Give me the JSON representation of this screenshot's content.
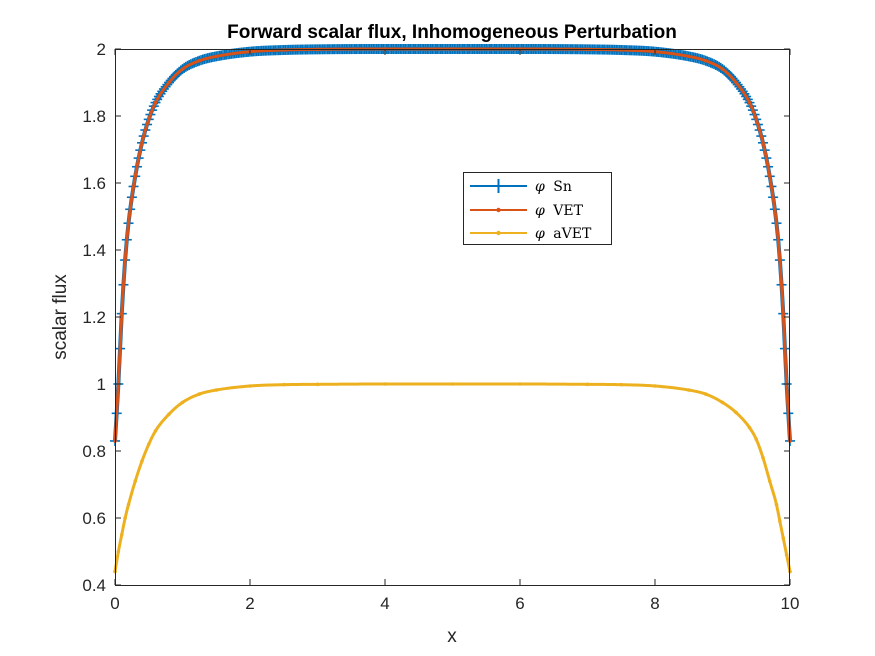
{
  "chart_data": {
    "type": "line",
    "title": "Forward scalar flux, Inhomogeneous Perturbation",
    "xlabel": "x",
    "ylabel": "scalar flux",
    "xlim": [
      0,
      10
    ],
    "ylim": [
      0.4,
      2
    ],
    "x_ticks": [
      "0",
      "2",
      "4",
      "6",
      "8",
      "10"
    ],
    "y_ticks": [
      "0.4",
      "0.6",
      "0.8",
      "1",
      "1.2",
      "1.4",
      "1.6",
      "1.8",
      "2"
    ],
    "grid": false,
    "legend_position": "center-right",
    "x": [
      0,
      0.05,
      0.1,
      0.15,
      0.2,
      0.3,
      0.4,
      0.5,
      0.6,
      0.8,
      1.0,
      1.25,
      1.5,
      2.0,
      2.5,
      3.0,
      4.0,
      5.0,
      6.0,
      7.0,
      7.5,
      8.0,
      8.5,
      8.75,
      9.0,
      9.2,
      9.4,
      9.5,
      9.6,
      9.7,
      9.8,
      9.85,
      9.9,
      9.95,
      10
    ],
    "series": [
      {
        "name": "φ Sn",
        "legend_symbol": "φ",
        "legend_label": "Sn",
        "color": "#0072BD",
        "marker": "plus",
        "values": [
          0.83,
          1.0,
          1.21,
          1.37,
          1.48,
          1.62,
          1.72,
          1.79,
          1.84,
          1.9,
          1.94,
          1.965,
          1.978,
          1.992,
          1.997,
          1.999,
          2.0,
          2.0,
          2.0,
          1.999,
          1.997,
          1.992,
          1.978,
          1.965,
          1.94,
          1.9,
          1.84,
          1.79,
          1.72,
          1.62,
          1.48,
          1.37,
          1.21,
          1.0,
          0.83
        ]
      },
      {
        "name": "φ VET",
        "legend_symbol": "φ",
        "legend_label": "VET",
        "color": "#D95319",
        "marker": "dot",
        "values": [
          0.83,
          1.0,
          1.21,
          1.37,
          1.48,
          1.62,
          1.72,
          1.79,
          1.84,
          1.9,
          1.94,
          1.965,
          1.978,
          1.992,
          1.997,
          1.999,
          2.0,
          2.0,
          2.0,
          1.999,
          1.997,
          1.992,
          1.978,
          1.965,
          1.94,
          1.9,
          1.84,
          1.79,
          1.72,
          1.62,
          1.48,
          1.37,
          1.21,
          1.0,
          0.83
        ]
      },
      {
        "name": "φ aVET",
        "legend_symbol": "φ",
        "legend_label": "aVET",
        "color": "#EDB120",
        "marker": "dot",
        "values": [
          0.44,
          0.5,
          0.55,
          0.6,
          0.64,
          0.71,
          0.77,
          0.82,
          0.86,
          0.91,
          0.945,
          0.97,
          0.982,
          0.994,
          0.998,
          0.999,
          1.0,
          1.0,
          1.0,
          0.999,
          0.998,
          0.994,
          0.982,
          0.97,
          0.945,
          0.915,
          0.87,
          0.835,
          0.78,
          0.71,
          0.64,
          0.59,
          0.54,
          0.49,
          0.44
        ]
      }
    ]
  }
}
